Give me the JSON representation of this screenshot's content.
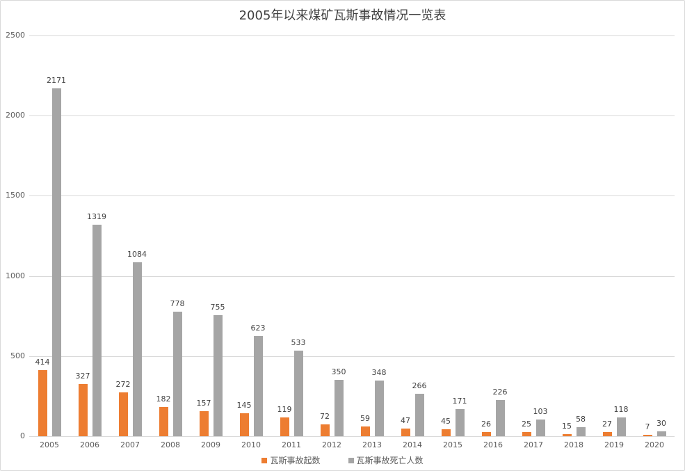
{
  "chart_data": {
    "type": "bar",
    "title": "2005年以来煤矿瓦斯事故情况一览表",
    "xlabel": "",
    "ylabel": "",
    "ylim": [
      0,
      2500
    ],
    "yticks": [
      0,
      500,
      1000,
      1500,
      2000,
      2500
    ],
    "grid": true,
    "legend_position": "bottom",
    "categories": [
      "2005",
      "2006",
      "2007",
      "2008",
      "2009",
      "2010",
      "2011",
      "2012",
      "2013",
      "2014",
      "2015",
      "2016",
      "2017",
      "2018",
      "2019",
      "2020"
    ],
    "series": [
      {
        "name": "瓦斯事故起数",
        "color": "#ed7d31",
        "values": [
          414,
          327,
          272,
          182,
          157,
          145,
          119,
          72,
          59,
          47,
          45,
          26,
          25,
          15,
          27,
          7
        ]
      },
      {
        "name": "瓦斯事故死亡人数",
        "color": "#a5a5a5",
        "values": [
          2171,
          1319,
          1084,
          778,
          755,
          623,
          533,
          350,
          348,
          266,
          171,
          226,
          103,
          58,
          118,
          30
        ]
      }
    ]
  }
}
